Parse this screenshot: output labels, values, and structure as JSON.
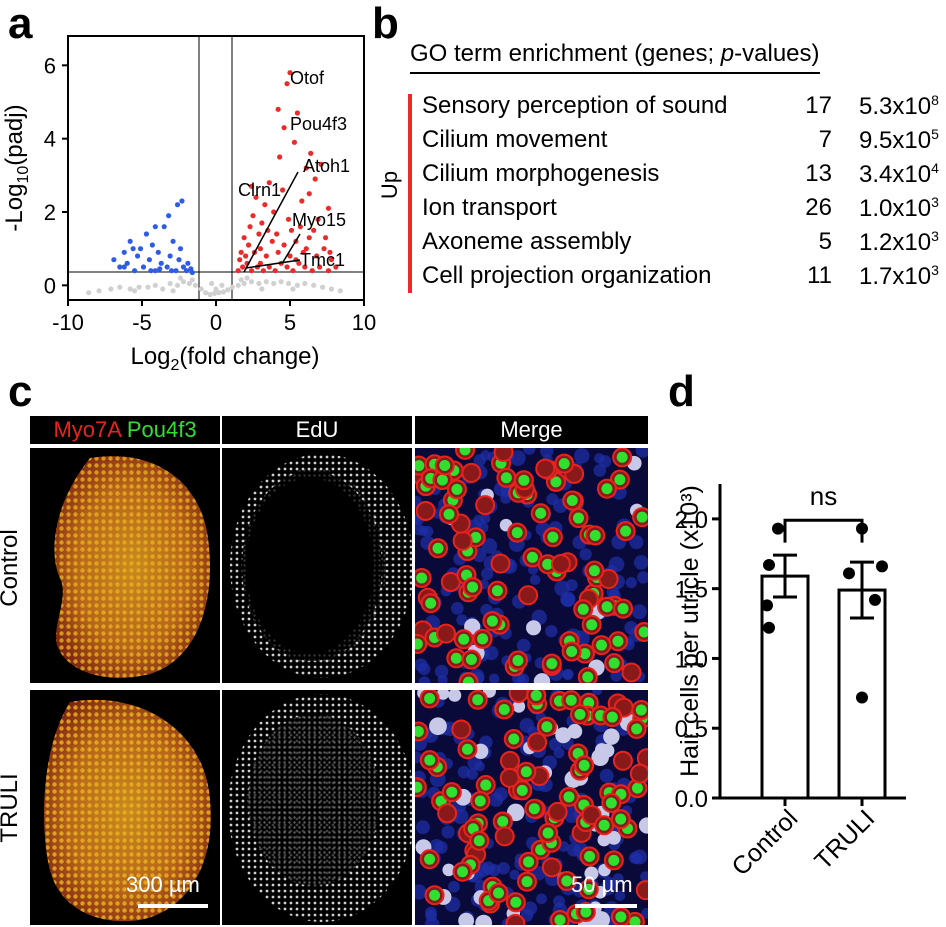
{
  "panel_labels": {
    "a": "a",
    "b": "b",
    "c": "c",
    "d": "d"
  },
  "chart_data": [
    {
      "type": "scatter",
      "panel": "a",
      "xlabel": "Log2(fold change)",
      "ylabel": "-Log10(padj)",
      "xlim": [
        -10,
        10
      ],
      "ylim": [
        -0.4,
        6.8
      ],
      "xticks": [
        "-10",
        "-5",
        "0",
        "5",
        "10"
      ],
      "yticks": [
        "0",
        "2",
        "4",
        "6"
      ],
      "thresholds": {
        "x": [
          -1.2,
          1.3
        ],
        "y": 0.3
      },
      "series": [
        {
          "color": "#d0d0d0",
          "points": [
            [
              -8.6,
              -0.2
            ],
            [
              -7.9,
              -0.15
            ],
            [
              -7.1,
              -0.1
            ],
            [
              -6.5,
              -0.05
            ],
            [
              -5.8,
              -0.1
            ],
            [
              -5.2,
              -0.05
            ],
            [
              -4.6,
              -0.05
            ],
            [
              -4.1,
              0
            ],
            [
              -3.6,
              -0.1
            ],
            [
              -3.1,
              0.05
            ],
            [
              -2.6,
              0
            ],
            [
              -2.2,
              0.1
            ],
            [
              -1.8,
              0.05
            ],
            [
              -1.4,
              0
            ],
            [
              -1.0,
              -0.1
            ],
            [
              -0.7,
              -0.2
            ],
            [
              -0.4,
              -0.25
            ],
            [
              -0.1,
              -0.22
            ],
            [
              0.2,
              -0.2
            ],
            [
              0.5,
              -0.18
            ],
            [
              0.8,
              -0.12
            ],
            [
              1.1,
              -0.05
            ],
            [
              1.5,
              0
            ],
            [
              1.9,
              0.05
            ],
            [
              2.4,
              0.1
            ],
            [
              2.9,
              0.05
            ],
            [
              3.4,
              0.1
            ],
            [
              3.9,
              0.05
            ],
            [
              4.4,
              0.1
            ],
            [
              4.9,
              0.05
            ],
            [
              5.5,
              0
            ],
            [
              6.0,
              0.05
            ],
            [
              6.6,
              0
            ],
            [
              7.2,
              -0.05
            ],
            [
              7.8,
              -0.1
            ],
            [
              8.4,
              -0.15
            ],
            [
              0,
              -0.1
            ],
            [
              -0.3,
              0.05
            ],
            [
              0.4,
              0.0
            ],
            [
              -1.6,
              0.15
            ],
            [
              1.7,
              0.15
            ],
            [
              -2.9,
              -0.15
            ],
            [
              3.1,
              -0.1
            ],
            [
              5.2,
              -0.1
            ],
            [
              -5.5,
              -0.15
            ],
            [
              2.1,
              0.2
            ],
            [
              -2.4,
              0.2
            ]
          ]
        },
        {
          "color": "#2f5ce6",
          "points": [
            [
              -6.9,
              0.7
            ],
            [
              -6.5,
              0.5
            ],
            [
              -6.2,
              0.9
            ],
            [
              -6.0,
              0.6
            ],
            [
              -5.8,
              1.2
            ],
            [
              -5.5,
              0.4
            ],
            [
              -5.3,
              0.8
            ],
            [
              -5.1,
              1.0
            ],
            [
              -4.9,
              0.5
            ],
            [
              -4.7,
              1.4
            ],
            [
              -4.5,
              0.7
            ],
            [
              -4.3,
              1.1
            ],
            [
              -4.1,
              0.4
            ],
            [
              -3.9,
              0.9
            ],
            [
              -3.7,
              0.6
            ],
            [
              -3.5,
              1.6
            ],
            [
              -3.3,
              0.5
            ],
            [
              -3.1,
              0.8
            ],
            [
              -2.9,
              1.2
            ],
            [
              -2.7,
              0.4
            ],
            [
              -2.5,
              0.7
            ],
            [
              -2.4,
              1.0
            ],
            [
              -2.2,
              0.5
            ],
            [
              -2.0,
              0.4
            ],
            [
              -1.9,
              0.6
            ],
            [
              -1.7,
              0.45
            ],
            [
              -1.6,
              0.35
            ],
            [
              -2.3,
              2.3
            ],
            [
              -2.6,
              2.2
            ],
            [
              -3.2,
              1.9
            ],
            [
              -4.1,
              1.6
            ],
            [
              -5.6,
              1.0
            ],
            [
              -6.2,
              0.5
            ],
            [
              -3.0,
              0.4
            ],
            [
              -3.8,
              0.45
            ],
            [
              -4.4,
              0.4
            ]
          ]
        },
        {
          "color": "#ec2a2a",
          "points": [
            [
              5.0,
              5.8
            ],
            [
              4.8,
              5.5
            ],
            [
              4.2,
              4.8
            ],
            [
              5.5,
              4.7
            ],
            [
              4.6,
              4.3
            ],
            [
              5.3,
              3.9
            ],
            [
              6.4,
              3.6
            ],
            [
              6.1,
              3.2
            ],
            [
              4.3,
              3.5
            ],
            [
              7.1,
              3.3
            ],
            [
              6.7,
              2.9
            ],
            [
              2.4,
              2.7
            ],
            [
              2.7,
              2.4
            ],
            [
              3.3,
              2.2
            ],
            [
              3.9,
              2.0
            ],
            [
              2.5,
              1.9
            ],
            [
              3.1,
              1.7
            ],
            [
              4.9,
              1.8
            ],
            [
              5.7,
              1.6
            ],
            [
              6.9,
              1.8
            ],
            [
              7.4,
              1.3
            ],
            [
              1.9,
              1.3
            ],
            [
              2.2,
              1.1
            ],
            [
              2.6,
              0.9
            ],
            [
              3.0,
              1.0
            ],
            [
              3.4,
              0.8
            ],
            [
              3.8,
              1.2
            ],
            [
              4.2,
              0.9
            ],
            [
              4.6,
              1.1
            ],
            [
              5.0,
              0.8
            ],
            [
              5.4,
              1.2
            ],
            [
              5.9,
              0.9
            ],
            [
              6.3,
              1.3
            ],
            [
              6.8,
              0.8
            ],
            [
              7.3,
              1.0
            ],
            [
              7.8,
              0.7
            ],
            [
              1.6,
              0.7
            ],
            [
              1.8,
              0.5
            ],
            [
              2.1,
              0.6
            ],
            [
              2.4,
              0.4
            ],
            [
              2.8,
              0.5
            ],
            [
              3.2,
              0.4
            ],
            [
              3.6,
              0.5
            ],
            [
              4.0,
              0.4
            ],
            [
              4.4,
              0.6
            ],
            [
              4.8,
              0.5
            ],
            [
              5.2,
              0.4
            ],
            [
              5.6,
              0.6
            ],
            [
              6.0,
              0.5
            ],
            [
              6.5,
              0.4
            ],
            [
              7.0,
              0.5
            ],
            [
              7.6,
              0.4
            ],
            [
              8.1,
              0.5
            ],
            [
              1.5,
              0.4
            ],
            [
              1.7,
              0.9
            ],
            [
              2.0,
              0.8
            ],
            [
              2.9,
              1.4
            ],
            [
              3.5,
              1.5
            ],
            [
              4.1,
              1.4
            ],
            [
              5.1,
              1.5
            ],
            [
              6.1,
              1.0
            ],
            [
              6.6,
              1.5
            ],
            [
              7.6,
              2.1
            ],
            [
              5.8,
              2.3
            ],
            [
              4.5,
              2.6
            ],
            [
              3.6,
              2.8
            ],
            [
              2.3,
              1.6
            ],
            [
              6.3,
              2.5
            ],
            [
              7.7,
              0.9
            ],
            [
              5.4,
              0.7
            ],
            [
              3.0,
              0.6
            ]
          ]
        }
      ],
      "gene_labels": [
        "Otof",
        "Pou4f3",
        "Atoh1",
        "Clrn1",
        "Myo15",
        "Tmc1"
      ]
    },
    {
      "type": "bar",
      "panel": "d",
      "ylabel": "Hair cells per utricle (x10³)",
      "categories": [
        "Control",
        "TRULI"
      ],
      "values": [
        1.59,
        1.49
      ],
      "sem": [
        0.15,
        0.2
      ],
      "points": [
        [
          1.93,
          1.67,
          1.38,
          1.22
        ],
        [
          1.93,
          1.66,
          1.61,
          1.42,
          0.72
        ]
      ],
      "ylim": [
        0,
        2.25
      ],
      "yticks": [
        "0.0",
        "0.5",
        "1.0",
        "1.5",
        "2.0"
      ],
      "significance": "ns"
    }
  ],
  "go": {
    "title_main": "GO term enrichment (genes; ",
    "title_p": "p",
    "title_end": "-values)",
    "up_label": "Up",
    "rows": [
      {
        "term": "Sensory perception of sound",
        "count": "17",
        "pv": "5.3x10",
        "exp": "8"
      },
      {
        "term": "Cilium movement",
        "count": "7",
        "pv": "9.5x10",
        "exp": "5"
      },
      {
        "term": "Cilium morphogenesis",
        "count": "13",
        "pv": "3.4x10",
        "exp": "4"
      },
      {
        "term": "Ion transport",
        "count": "26",
        "pv": "1.0x10",
        "exp": "3"
      },
      {
        "term": "Axoneme assembly",
        "count": "5",
        "pv": "1.2x10",
        "exp": "3"
      },
      {
        "term": "Cell projection organization",
        "count": "11",
        "pv": "1.7x10",
        "exp": "3"
      }
    ]
  },
  "micrographs": {
    "headers": {
      "myo": "Myo7A",
      "pou": "Pou4f3",
      "edu": "EdU",
      "merge": "Merge"
    },
    "rows": [
      "Control",
      "TRULI"
    ],
    "scale_300": "300 µm",
    "scale_50": "50 µm",
    "colors": {
      "myo": "#e8231e",
      "pou": "#2fe02f",
      "nuclei_blue": "#1e2fa8",
      "edu_gray": "#d8d8d8"
    }
  }
}
